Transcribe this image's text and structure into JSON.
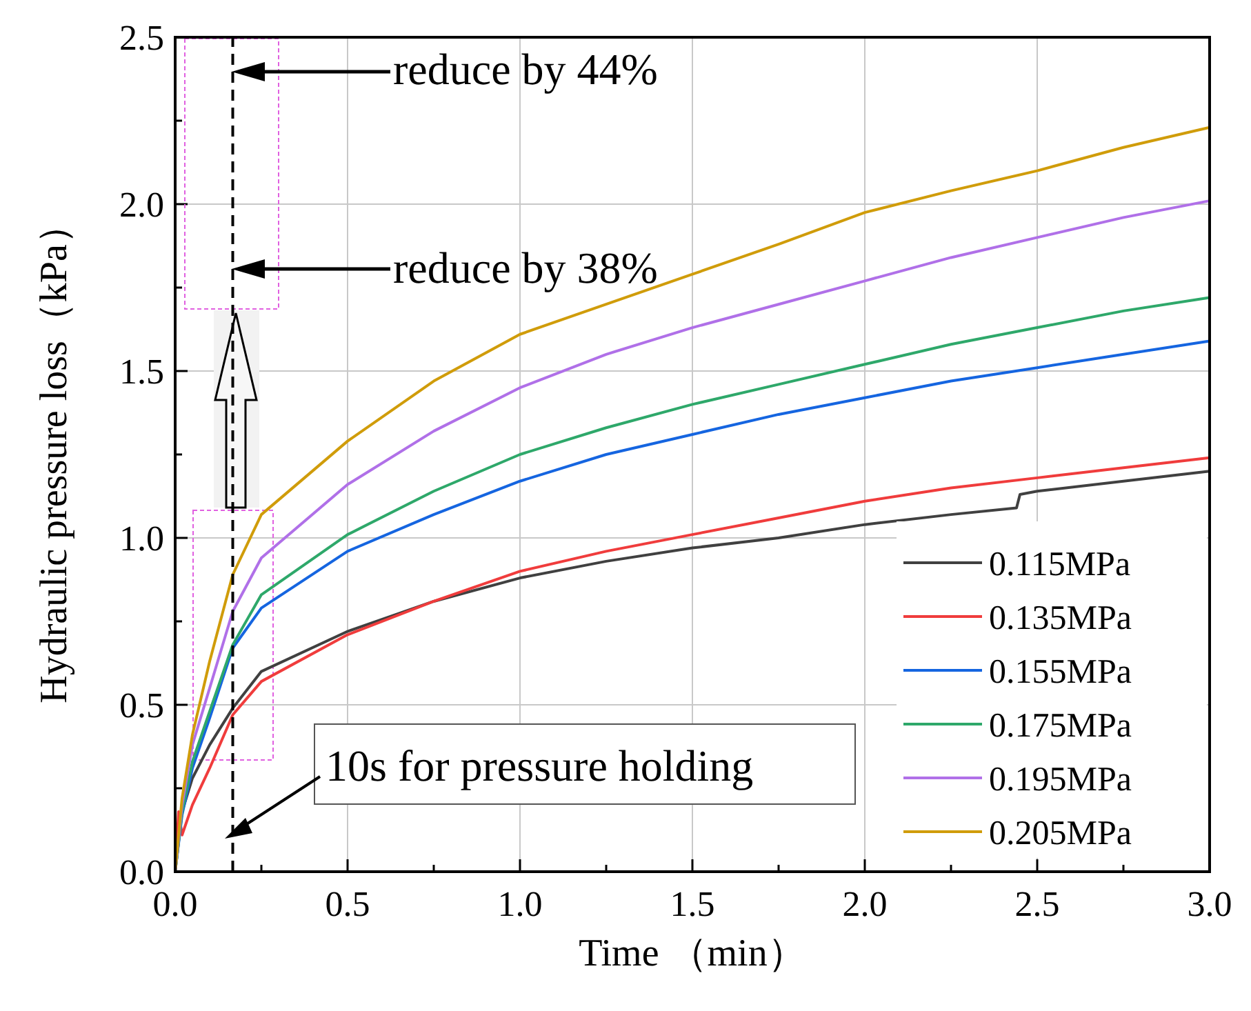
{
  "chart_data": {
    "type": "line",
    "xlabel": "Time （min）",
    "ylabel": "Hydraulic pressure loss（kPa）",
    "x": [
      0,
      0.02,
      0.05,
      0.1,
      0.167,
      0.25,
      0.5,
      0.75,
      1.0,
      1.25,
      1.5,
      1.75,
      2.0,
      2.25,
      2.5,
      2.75,
      3.0
    ],
    "series": [
      {
        "name": "0.115MPa",
        "color": "#404040",
        "x": [
          0,
          0.02,
          0.05,
          0.1,
          0.167,
          0.25,
          0.5,
          0.75,
          1.0,
          1.25,
          1.5,
          1.75,
          2.0,
          2.25,
          2.44,
          2.45,
          2.5,
          2.75,
          3.0
        ],
        "values": [
          0,
          0.18,
          0.28,
          0.38,
          0.49,
          0.6,
          0.72,
          0.81,
          0.88,
          0.93,
          0.97,
          1.0,
          1.04,
          1.07,
          1.09,
          1.13,
          1.14,
          1.17,
          1.2
        ]
      },
      {
        "name": "0.135MPa",
        "color": "#f03c3c",
        "x": [
          0,
          0.01,
          0.02,
          0.05,
          0.1,
          0.167,
          0.25,
          0.5,
          0.75,
          1.0,
          1.25,
          1.5,
          1.75,
          2.0,
          2.25,
          2.5,
          2.75,
          3.0
        ],
        "values": [
          0,
          0.18,
          0.11,
          0.2,
          0.31,
          0.47,
          0.57,
          0.71,
          0.81,
          0.9,
          0.96,
          1.01,
          1.06,
          1.11,
          1.15,
          1.18,
          1.21,
          1.24
        ]
      },
      {
        "name": "0.155MPa",
        "color": "#1565e0",
        "values": [
          0,
          0.17,
          0.31,
          0.46,
          0.67,
          0.79,
          0.96,
          1.07,
          1.17,
          1.25,
          1.31,
          1.37,
          1.42,
          1.47,
          1.51,
          1.55,
          1.59
        ]
      },
      {
        "name": "0.175MPa",
        "color": "#2ea86a",
        "values": [
          0,
          0.18,
          0.33,
          0.48,
          0.68,
          0.83,
          1.01,
          1.14,
          1.25,
          1.33,
          1.4,
          1.46,
          1.52,
          1.58,
          1.63,
          1.68,
          1.72
        ]
      },
      {
        "name": "0.195MPa",
        "color": "#b070e8",
        "values": [
          0,
          0.2,
          0.38,
          0.55,
          0.78,
          0.94,
          1.16,
          1.32,
          1.45,
          1.55,
          1.63,
          1.7,
          1.77,
          1.84,
          1.9,
          1.96,
          2.01
        ]
      },
      {
        "name": "0.205MPa",
        "color": "#d09c0a",
        "values": [
          0,
          0.22,
          0.41,
          0.63,
          0.89,
          1.07,
          1.29,
          1.47,
          1.61,
          1.7,
          1.79,
          1.88,
          1.975,
          2.04,
          2.1,
          2.17,
          2.23
        ]
      }
    ],
    "xlim": [
      0,
      3
    ],
    "ylim": [
      0,
      2.5
    ],
    "xticks": [
      {
        "value": 0,
        "label": "0.0"
      },
      {
        "value": 0.5,
        "label": "0.5"
      },
      {
        "value": 1,
        "label": "1.0"
      },
      {
        "value": 1.5,
        "label": "1.5"
      },
      {
        "value": 2,
        "label": "2.0"
      },
      {
        "value": 2.5,
        "label": "2.5"
      },
      {
        "value": 3,
        "label": "3.0"
      }
    ],
    "yticks": [
      {
        "value": 0,
        "label": "0.0"
      },
      {
        "value": 0.5,
        "label": "0.5"
      },
      {
        "value": 1,
        "label": "1.0"
      },
      {
        "value": 1.5,
        "label": "1.5"
      },
      {
        "value": 2,
        "label": "2.0"
      },
      {
        "value": 2.5,
        "label": "2.5"
      }
    ],
    "grid": true,
    "legend": "bottom right",
    "line_style": "solid",
    "marker": "none",
    "ref_lines": [
      {
        "axis": "x",
        "value": 0.167,
        "label": "10s for pressure holding",
        "color": "#000000",
        "line_style": "dashed"
      }
    ],
    "annotations": [
      "reduce by 44%",
      "reduce by 38%"
    ]
  }
}
